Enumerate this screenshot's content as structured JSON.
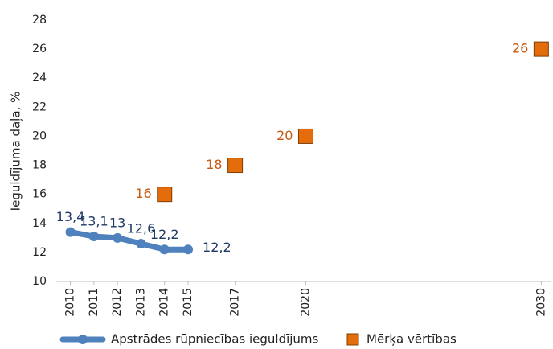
{
  "chart_data": {
    "type": "line",
    "ylabel": "Ieguldījuma daļa, %",
    "xlim": [
      2009.4,
      2030.5
    ],
    "xticks": [
      2010,
      2011,
      2012,
      2013,
      2014,
      2015,
      2017,
      2020,
      2030
    ],
    "ylim": [
      10,
      28
    ],
    "yticks": [
      10,
      12,
      14,
      16,
      18,
      20,
      22,
      24,
      26,
      28
    ],
    "grid": false,
    "legend": "bottom",
    "series": [
      {
        "name": "Apstrādes rūpniecības ieguldījums",
        "type": "line",
        "color": "#4f81bd",
        "label_color": "#1f3864",
        "x": [
          2010,
          2011,
          2012,
          2013,
          2014,
          2015
        ],
        "values": [
          13.4,
          13.1,
          13,
          12.6,
          12.2,
          12.2
        ],
        "value_labels": [
          "13,4",
          "13,1",
          "13",
          "12,6",
          "12,2",
          "12,2"
        ]
      },
      {
        "name": "Mērķa vērtības",
        "type": "scatter",
        "color": "#e46c0a",
        "label_color": "#c55a11",
        "x": [
          2014,
          2017,
          2020,
          2030
        ],
        "values": [
          16,
          18,
          20,
          26
        ]
      }
    ]
  }
}
